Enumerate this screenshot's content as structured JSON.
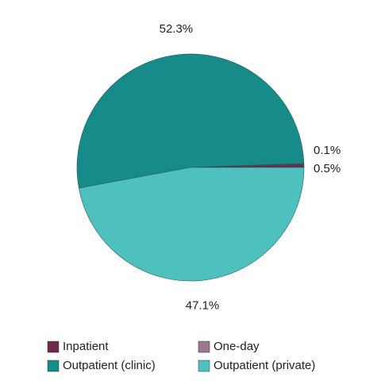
{
  "chart_data": {
    "type": "pie",
    "categories": [
      "Inpatient",
      "One-day",
      "Outpatient (clinic)",
      "Outpatient (private)"
    ],
    "values": [
      0.5,
      0.1,
      52.3,
      47.1
    ],
    "value_labels": [
      "0.5%",
      "0.1%",
      "52.3%",
      "47.1%"
    ],
    "colors": [
      "#6d2a4e",
      "#9c7790",
      "#178b89",
      "#4ec1bf"
    ]
  }
}
